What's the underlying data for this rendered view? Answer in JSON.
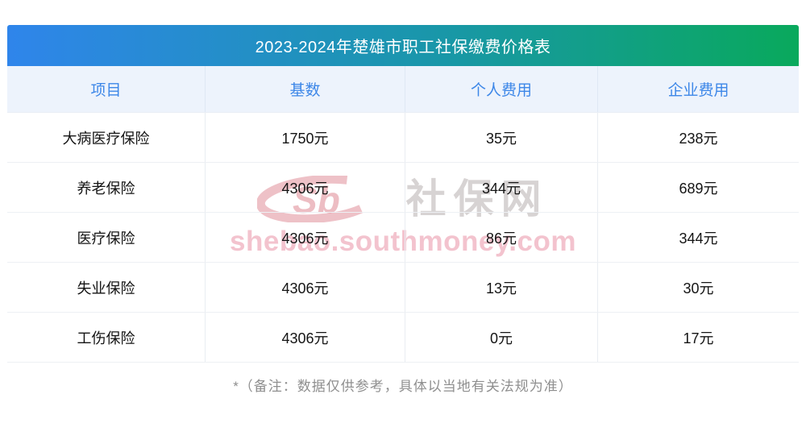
{
  "title": "2023-2024年楚雄市职工社保缴费价格表",
  "table": {
    "headers": [
      "项目",
      "基数",
      "个人费用",
      "企业费用"
    ],
    "rows": [
      [
        "大病医疗保险",
        "1750元",
        "35元",
        "238元"
      ],
      [
        "养老保险",
        "4306元",
        "344元",
        "689元"
      ],
      [
        "医疗保险",
        "4306元",
        "86元",
        "344元"
      ],
      [
        "失业保险",
        "4306元",
        "13元",
        "30元"
      ],
      [
        "工伤保险",
        "4306元",
        "0元",
        "17元"
      ]
    ]
  },
  "note": "*（备注：数据仅供参考，具体以当地有关法规为准）",
  "watermark": {
    "logo_text": "Sb",
    "brand": "社保网",
    "url": "shebao.southmoney.com"
  },
  "colors": {
    "title_gradient_start": "#2F85EB",
    "title_gradient_end": "#09A95C",
    "header_bg": "#EDF3FC",
    "header_text": "#3D87E8",
    "body_text": "#141414",
    "note_text": "#8F8F8F",
    "watermark_pink": "#E3A5B1",
    "watermark_url_pink": "#F3C3CE",
    "watermark_gray": "#D7D3D3"
  },
  "chart_data": {
    "type": "table",
    "title": "2023-2024年楚雄市职工社保缴费价格表",
    "columns": [
      "项目",
      "基数",
      "个人费用",
      "企业费用"
    ],
    "rows": [
      [
        "大病医疗保险",
        "1750元",
        "35元",
        "238元"
      ],
      [
        "养老保险",
        "4306元",
        "344元",
        "689元"
      ],
      [
        "医疗保险",
        "4306元",
        "86元",
        "344元"
      ],
      [
        "失业保险",
        "4306元",
        "13元",
        "30元"
      ],
      [
        "工伤保险",
        "4306元",
        "0元",
        "17元"
      ]
    ],
    "note": "*（备注：数据仅供参考，具体以当地有关法规为准）",
    "layout": {
      "grid": true,
      "header_row": true,
      "title_bar_gradient": [
        "#2F85EB",
        "#09A95C"
      ]
    }
  }
}
